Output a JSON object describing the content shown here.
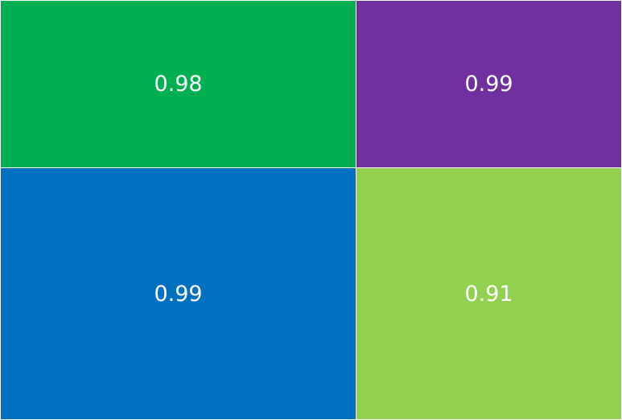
{
  "chart_data": {
    "type": "treemap",
    "title": "",
    "legend": "none",
    "tiles": [
      {
        "label": "0.98",
        "value": 0.98,
        "color": "#00B050"
      },
      {
        "label": "0.99",
        "value": 0.99,
        "color": "#7030A0"
      },
      {
        "label": "0.99",
        "value": 0.99,
        "color": "#0070C0"
      },
      {
        "label": "0.91",
        "value": 0.91,
        "color": "#92D050"
      }
    ]
  }
}
